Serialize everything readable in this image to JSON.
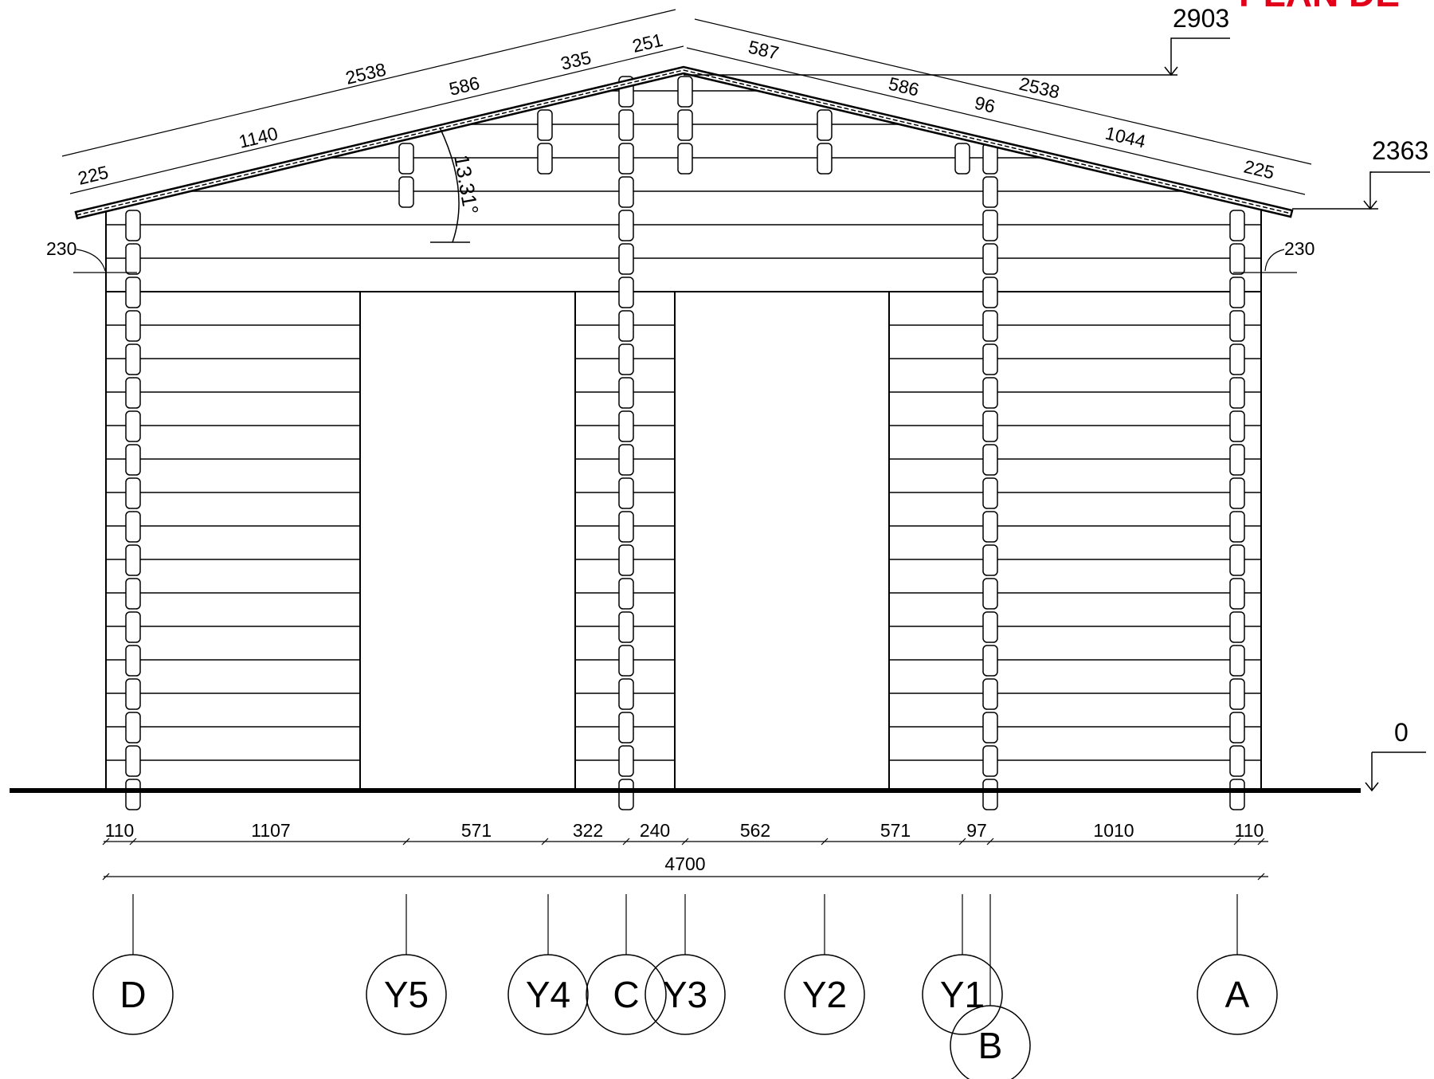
{
  "title": "PLAN DE",
  "colors": {
    "line": "#000000",
    "title": "#e3001b",
    "background": "#ffffff"
  },
  "levels": {
    "ridge": "2903",
    "eave": "2363",
    "ground": "0"
  },
  "roof_angle": "13.31°",
  "overhang_left": "230",
  "overhang_right": "230",
  "roof_left": {
    "total": "2538",
    "segments": [
      "225",
      "1140",
      "586",
      "335",
      "251"
    ]
  },
  "roof_right": {
    "total": "2538",
    "segments": [
      "587",
      "586",
      "96",
      "1044",
      "225"
    ]
  },
  "bottom_dims": [
    "110",
    "1107",
    "571",
    "322",
    "240",
    "562",
    "571",
    "97",
    "1010",
    "110"
  ],
  "total_width": "4700",
  "axes": [
    "D",
    "Y5",
    "Y4",
    "C",
    "Y3",
    "Y2",
    "Y1",
    "B",
    "A"
  ]
}
